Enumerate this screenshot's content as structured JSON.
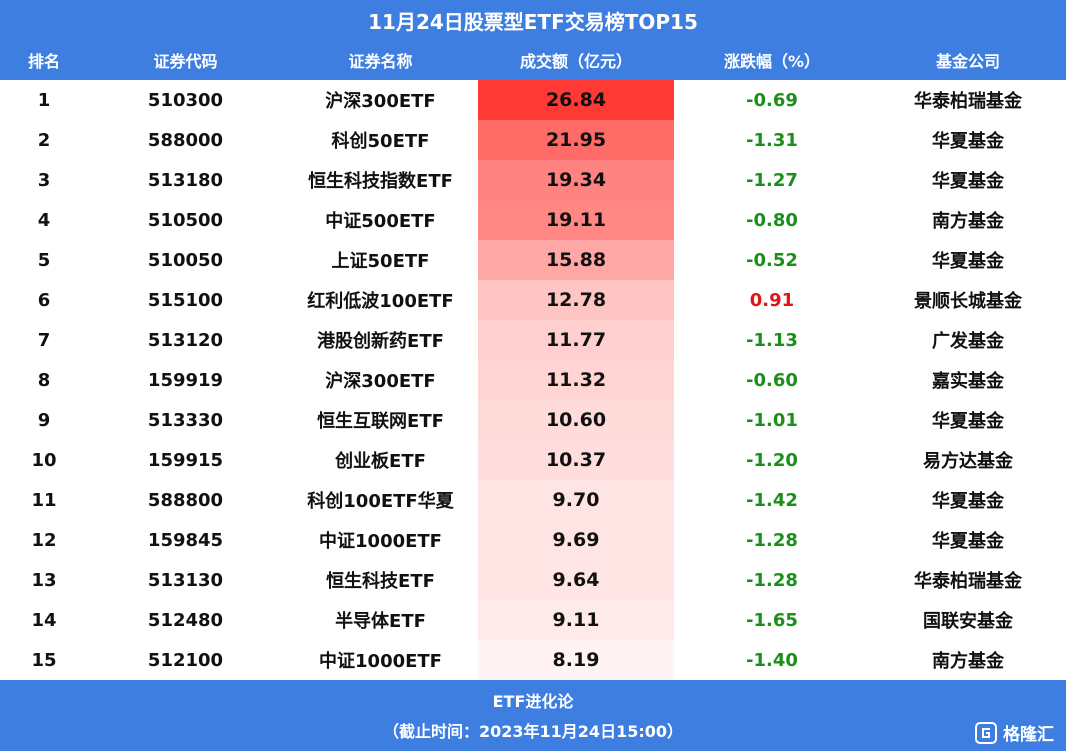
{
  "title": "11月24日股票型ETF交易榜TOP15",
  "headers": [
    "排名",
    "证券代码",
    "证券名称",
    "成交额（亿元）",
    "涨跌幅（%）",
    "基金公司"
  ],
  "colors": {
    "header_bg": "#3d7ee0",
    "bar_max": "#ff3a35",
    "bar_min": "#fff3f3",
    "negative": "#1a8f1a",
    "positive": "#e01515"
  },
  "rows": [
    {
      "rank": "1",
      "code": "510300",
      "name": "沪深300ETF",
      "turnover": "26.84",
      "change": "-0.69",
      "company": "华泰柏瑞基金"
    },
    {
      "rank": "2",
      "code": "588000",
      "name": "科创50ETF",
      "turnover": "21.95",
      "change": "-1.31",
      "company": "华夏基金"
    },
    {
      "rank": "3",
      "code": "513180",
      "name": "恒生科技指数ETF",
      "turnover": "19.34",
      "change": "-1.27",
      "company": "华夏基金"
    },
    {
      "rank": "4",
      "code": "510500",
      "name": "中证500ETF",
      "turnover": "19.11",
      "change": "-0.80",
      "company": "南方基金"
    },
    {
      "rank": "5",
      "code": "510050",
      "name": "上证50ETF",
      "turnover": "15.88",
      "change": "-0.52",
      "company": "华夏基金"
    },
    {
      "rank": "6",
      "code": "515100",
      "name": "红利低波100ETF",
      "turnover": "12.78",
      "change": "0.91",
      "company": "景顺长城基金"
    },
    {
      "rank": "7",
      "code": "513120",
      "name": "港股创新药ETF",
      "turnover": "11.77",
      "change": "-1.13",
      "company": "广发基金"
    },
    {
      "rank": "8",
      "code": "159919",
      "name": "沪深300ETF",
      "turnover": "11.32",
      "change": "-0.60",
      "company": "嘉实基金"
    },
    {
      "rank": "9",
      "code": "513330",
      "name": "恒生互联网ETF",
      "turnover": "10.60",
      "change": "-1.01",
      "company": "华夏基金"
    },
    {
      "rank": "10",
      "code": "159915",
      "name": "创业板ETF",
      "turnover": "10.37",
      "change": "-1.20",
      "company": "易方达基金"
    },
    {
      "rank": "11",
      "code": "588800",
      "name": "科创100ETF华夏",
      "turnover": "9.70",
      "change": "-1.42",
      "company": "华夏基金"
    },
    {
      "rank": "12",
      "code": "159845",
      "name": "中证1000ETF",
      "turnover": "9.69",
      "change": "-1.28",
      "company": "华夏基金"
    },
    {
      "rank": "13",
      "code": "513130",
      "name": "恒生科技ETF",
      "turnover": "9.64",
      "change": "-1.28",
      "company": "华泰柏瑞基金"
    },
    {
      "rank": "14",
      "code": "512480",
      "name": "半导体ETF",
      "turnover": "9.11",
      "change": "-1.65",
      "company": "国联安基金"
    },
    {
      "rank": "15",
      "code": "512100",
      "name": "中证1000ETF",
      "turnover": "8.19",
      "change": "-1.40",
      "company": "南方基金"
    }
  ],
  "footer": {
    "line1": "ETF进化论",
    "line2": "（截止时间：2023年11月24日15:00）"
  },
  "watermark": {
    "text": "格隆汇",
    "icon": "glh-logo-icon"
  },
  "chart_data": {
    "type": "table",
    "title": "11月24日股票型ETF交易榜TOP15",
    "columns": [
      "排名",
      "证券代码",
      "证券名称",
      "成交额（亿元）",
      "涨跌幅（%）",
      "基金公司"
    ],
    "series": [
      {
        "name": "成交额（亿元）",
        "values": [
          26.84,
          21.95,
          19.34,
          19.11,
          15.88,
          12.78,
          11.77,
          11.32,
          10.6,
          10.37,
          9.7,
          9.69,
          9.64,
          9.11,
          8.19
        ]
      },
      {
        "name": "涨跌幅（%）",
        "values": [
          -0.69,
          -1.31,
          -1.27,
          -0.8,
          -0.52,
          0.91,
          -1.13,
          -0.6,
          -1.01,
          -1.2,
          -1.42,
          -1.28,
          -1.28,
          -1.65,
          -1.4
        ]
      }
    ]
  }
}
